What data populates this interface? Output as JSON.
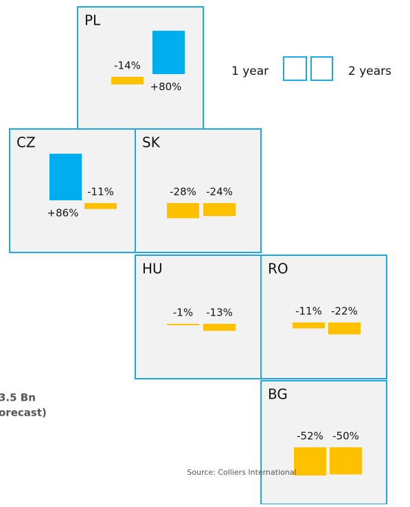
{
  "chart_data": {
    "type": "tilemap",
    "positive_color": "#00aeef",
    "negative_color": "#ffc000",
    "legend": {
      "labels": [
        "1 year",
        "2 years"
      ]
    },
    "tiles": [
      {
        "name": "PL",
        "values": [
          -14,
          80
        ],
        "value_labels": [
          "-14%",
          "+80%"
        ]
      },
      {
        "name": "CZ",
        "values": [
          86,
          -11
        ],
        "value_labels": [
          "+86%",
          "-11%"
        ]
      },
      {
        "name": "SK",
        "values": [
          -28,
          -24
        ],
        "value_labels": [
          "-28%",
          "-24%"
        ]
      },
      {
        "name": "HU",
        "values": [
          -1,
          -13
        ],
        "value_labels": [
          "-1%",
          "-13%"
        ]
      },
      {
        "name": "RO",
        "values": [
          -11,
          -22
        ],
        "value_labels": [
          "-11%",
          "-22%"
        ]
      },
      {
        "name": "BG",
        "values": [
          -52,
          -50
        ],
        "value_labels": [
          "-52%",
          "-50%"
        ]
      }
    ],
    "annotations": [
      "3.5 Bn",
      "orecast)"
    ],
    "source": "Source: Colliers International"
  }
}
